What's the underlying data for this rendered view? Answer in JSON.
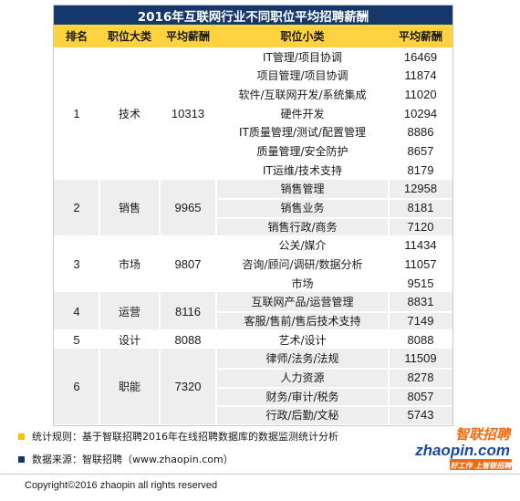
{
  "title": "2016年互联网行业不同职位平均招聘薪酬",
  "headers": [
    "排名",
    "职位大类",
    "平均薪酬",
    "职位小类",
    "平均薪酬"
  ],
  "groups": [
    {
      "rank": "1",
      "category": "技术",
      "salary": "10313",
      "rows": [
        {
          "sub": "IT管理/项目协调",
          "salary": "16469"
        },
        {
          "sub": "项目管理/项目协调",
          "salary": "11874"
        },
        {
          "sub": "软件/互联网开发/系统集成",
          "salary": "11020"
        },
        {
          "sub": "硬件开发",
          "salary": "10294"
        },
        {
          "sub": "IT质量管理/测试/配置管理",
          "salary": "8886"
        },
        {
          "sub": "质量管理/安全防护",
          "salary": "8657"
        },
        {
          "sub": "IT运维/技术支持",
          "salary": "8179"
        }
      ]
    },
    {
      "rank": "2",
      "category": "销售",
      "salary": "9965",
      "rows": [
        {
          "sub": "销售管理",
          "salary": "12958"
        },
        {
          "sub": "销售业务",
          "salary": "8181"
        },
        {
          "sub": "销售行政/商务",
          "salary": "7120"
        }
      ]
    },
    {
      "rank": "3",
      "category": "市场",
      "salary": "9807",
      "rows": [
        {
          "sub": "公关/媒介",
          "salary": "11434"
        },
        {
          "sub": "咨询/顾问/调研/数据分析",
          "salary": "11057"
        },
        {
          "sub": "市场",
          "salary": "9515"
        }
      ]
    },
    {
      "rank": "4",
      "category": "运营",
      "salary": "8116",
      "rows": [
        {
          "sub": "互联网产品/运营管理",
          "salary": "8831"
        },
        {
          "sub": "客服/售前/售后技术支持",
          "salary": "7149"
        }
      ]
    },
    {
      "rank": "5",
      "category": "设计",
      "salary": "8088",
      "rows": [
        {
          "sub": "艺术/设计",
          "salary": "8088"
        }
      ]
    },
    {
      "rank": "6",
      "category": "职能",
      "salary": "7320",
      "rows": [
        {
          "sub": "律师/法务/法规",
          "salary": "11509"
        },
        {
          "sub": "人力资源",
          "salary": "8278"
        },
        {
          "sub": "财务/审计/税务",
          "salary": "8057"
        },
        {
          "sub": "行政/后勤/文秘",
          "salary": "5743"
        }
      ]
    }
  ],
  "notes": [
    {
      "text": "统计规则：基于智联招聘2016年在线招聘数据库的数据监测统计分析",
      "color": "#f5c400"
    },
    {
      "text": "数据来源：智联招聘（www.zhaopin.com）",
      "color": "#16376a"
    }
  ],
  "copyright": "Copyright©2016 zhaopin all rights reserved",
  "logo": {
    "cn": "智联招聘",
    "en": "zhaopin.com",
    "slogan": "好工作 上智联招聘",
    "colors": {
      "orange": "#f26a10",
      "blue": "#1b4a9c"
    }
  }
}
